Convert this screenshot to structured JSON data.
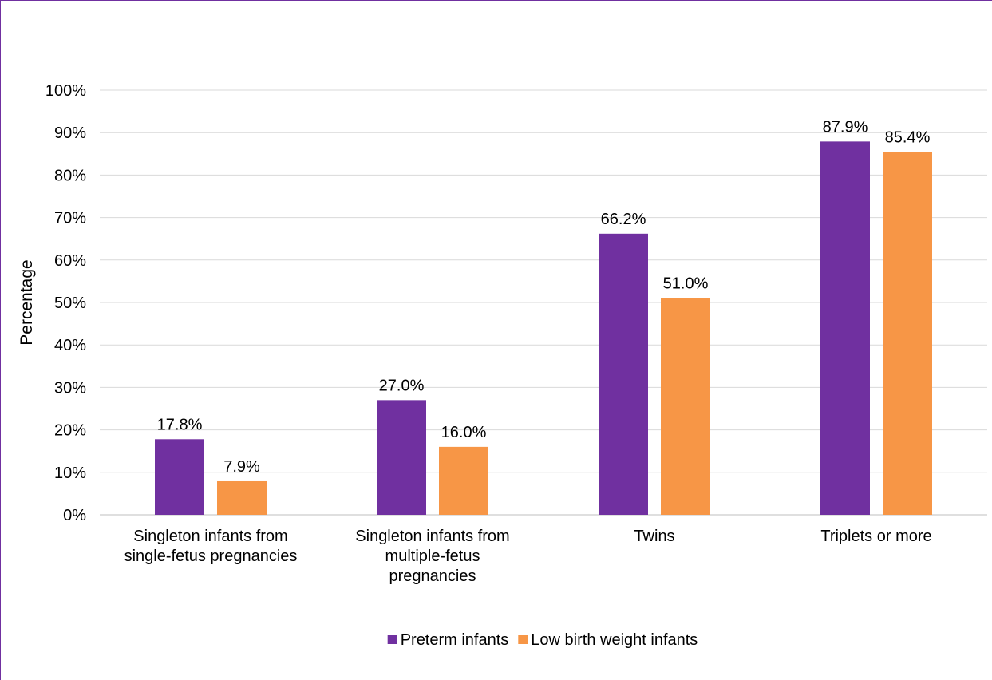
{
  "chart_data": {
    "type": "bar",
    "title": "",
    "xlabel": "",
    "ylabel": "Percentage",
    "ylim": [
      0,
      100
    ],
    "yticks": [
      "0%",
      "10%",
      "20%",
      "30%",
      "40%",
      "50%",
      "60%",
      "70%",
      "80%",
      "90%",
      "100%"
    ],
    "categories": [
      [
        "Singleton infants from",
        "single-fetus pregnancies"
      ],
      [
        "Singleton infants from",
        "multiple-fetus",
        "pregnancies"
      ],
      [
        "Twins"
      ],
      [
        "Triplets or more"
      ]
    ],
    "series": [
      {
        "name": "Preterm infants",
        "color": "#7030a0",
        "values": [
          17.8,
          27.0,
          66.2,
          87.9
        ],
        "labels": [
          "17.8%",
          "27.0%",
          "66.2%",
          "87.9%"
        ]
      },
      {
        "name": "Low birth weight infants",
        "color": "#f79646",
        "values": [
          7.9,
          16.0,
          51.0,
          85.4
        ],
        "labels": [
          "7.9%",
          "16.0%",
          "51.0%",
          "85.4%"
        ]
      }
    ],
    "grid": true,
    "legend_position": "bottom"
  }
}
